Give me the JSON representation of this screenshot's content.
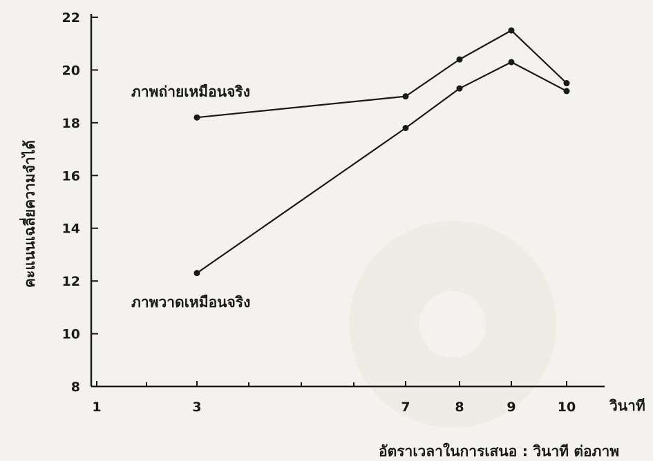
{
  "chart_data": {
    "type": "line",
    "xlabel": "อัตราเวลาในการเสนอ : วินาที ต่อภาพ",
    "x_unit_label": "วินาที",
    "ylabel": "คะแนนเฉลี่ยความจำได้",
    "x_ticks": [
      1,
      3,
      7,
      8,
      9,
      10
    ],
    "y_ticks": [
      8,
      10,
      12,
      14,
      16,
      18,
      20,
      22
    ],
    "xlim": [
      1,
      10
    ],
    "ylim": [
      8,
      22
    ],
    "grid": false,
    "series": [
      {
        "name": "ภาพถ่ายเหมือนจริง",
        "x": [
          3,
          7,
          8,
          9,
          10
        ],
        "y": [
          18.2,
          19.0,
          20.4,
          21.5,
          19.5
        ]
      },
      {
        "name": "ภาพวาดเหมือนจริง",
        "x": [
          3,
          7,
          8,
          9,
          10
        ],
        "y": [
          12.3,
          17.8,
          19.3,
          20.3,
          19.2
        ]
      }
    ],
    "colors": {
      "line": "#1a1a1a",
      "background": "#f3f2ee"
    }
  }
}
